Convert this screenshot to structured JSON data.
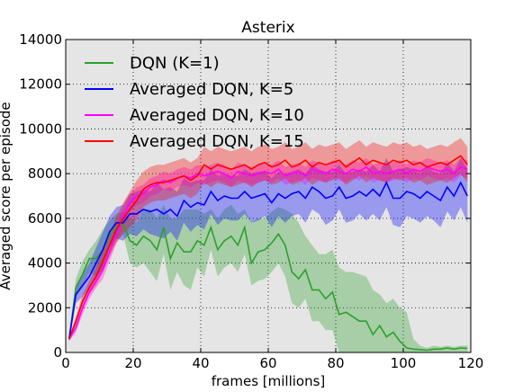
{
  "chart_data": {
    "type": "line",
    "title": "Asterix",
    "xlabel": "frames [millions]",
    "ylabel": "Averaged score per episode",
    "xlim": [
      0,
      120
    ],
    "ylim": [
      0,
      14000
    ],
    "xticks": [
      0,
      20,
      40,
      60,
      80,
      100,
      120
    ],
    "yticks": [
      0,
      2000,
      4000,
      6000,
      8000,
      10000,
      12000,
      14000
    ],
    "grid": true,
    "legend_position": "top-left",
    "background_color": "#e5e5e5",
    "series": [
      {
        "name": "DQN (K=1)",
        "color": "#2ca02c",
        "x": [
          1,
          3,
          5,
          7,
          9,
          11,
          13,
          15,
          17,
          19,
          21,
          23,
          25,
          27,
          29,
          31,
          33,
          35,
          37,
          39,
          41,
          43,
          45,
          47,
          49,
          51,
          53,
          55,
          57,
          59,
          61,
          63,
          65,
          67,
          69,
          71,
          73,
          75,
          77,
          79,
          81,
          83,
          85,
          87,
          89,
          91,
          93,
          95,
          97,
          99,
          101,
          103,
          105,
          107,
          109,
          111,
          113,
          115,
          117,
          119
        ],
        "y": [
          600,
          2900,
          3500,
          4200,
          4200,
          4600,
          5200,
          5600,
          5800,
          5000,
          4800,
          5200,
          5000,
          4600,
          5600,
          4200,
          4900,
          4500,
          4500,
          5000,
          4800,
          5600,
          4600,
          5000,
          5200,
          4800,
          5600,
          4000,
          4500,
          4600,
          4900,
          5300,
          4800,
          3600,
          3300,
          3700,
          2800,
          2800,
          2400,
          2700,
          1700,
          1800,
          1600,
          1400,
          1400,
          800,
          1200,
          700,
          900,
          500,
          200,
          150,
          130,
          100,
          150,
          150,
          200,
          150,
          200,
          180
        ],
        "upper": [
          700,
          3300,
          4100,
          4600,
          5000,
          5500,
          5900,
          6200,
          6300,
          6000,
          5800,
          6400,
          6400,
          6000,
          6600,
          6000,
          6000,
          6400,
          6400,
          6400,
          6200,
          6400,
          6000,
          6400,
          6600,
          6200,
          6400,
          5800,
          6000,
          6000,
          6300,
          6500,
          6400,
          6200,
          5800,
          5200,
          4800,
          4400,
          4400,
          4600,
          3800,
          3600,
          3600,
          3500,
          3400,
          2800,
          2600,
          2200,
          2400,
          2000,
          1800,
          600,
          300,
          200,
          300,
          250,
          300,
          250,
          300,
          300
        ],
        "lower": [
          500,
          2500,
          2900,
          3600,
          3400,
          3700,
          4500,
          5000,
          5300,
          4000,
          3800,
          4000,
          3600,
          3200,
          4400,
          2800,
          3600,
          3000,
          2800,
          3800,
          3400,
          4600,
          3400,
          3800,
          4000,
          3600,
          4400,
          3000,
          3200,
          3300,
          3600,
          4000,
          3400,
          2200,
          2000,
          2400,
          1400,
          1400,
          1000,
          1000,
          0,
          0,
          0,
          0,
          0,
          0,
          0,
          0,
          0,
          0,
          0,
          0,
          0,
          0,
          0,
          0,
          0,
          0,
          0,
          0
        ]
      },
      {
        "name": "Averaged DQN, K=5",
        "color": "#0000ff",
        "x": [
          1,
          3,
          5,
          7,
          9,
          11,
          13,
          15,
          17,
          19,
          21,
          23,
          25,
          27,
          29,
          31,
          33,
          35,
          37,
          39,
          41,
          43,
          45,
          47,
          49,
          51,
          53,
          55,
          57,
          59,
          61,
          63,
          65,
          67,
          69,
          71,
          73,
          75,
          77,
          79,
          81,
          83,
          85,
          87,
          89,
          91,
          93,
          95,
          97,
          99,
          101,
          103,
          105,
          107,
          109,
          111,
          113,
          115,
          117,
          119
        ],
        "y": [
          600,
          2600,
          3000,
          3400,
          4000,
          4600,
          5400,
          5800,
          5800,
          6200,
          6200,
          6400,
          6300,
          6400,
          6200,
          6400,
          6100,
          6800,
          6500,
          6700,
          6600,
          7200,
          6800,
          7000,
          6900,
          6900,
          7200,
          6900,
          7000,
          7100,
          6700,
          7100,
          6900,
          7100,
          7200,
          6900,
          7400,
          7200,
          6900,
          7000,
          7400,
          6900,
          7000,
          7200,
          7000,
          7300,
          7000,
          7600,
          6900,
          6900,
          7200,
          7100,
          6900,
          7200,
          7000,
          6800,
          7400,
          7000,
          7600,
          7000
        ],
        "upper": [
          700,
          3000,
          3500,
          4000,
          4700,
          5400,
          6100,
          6500,
          6600,
          7100,
          7200,
          7300,
          7200,
          7600,
          7300,
          7400,
          7200,
          7800,
          7600,
          7700,
          7700,
          8200,
          7900,
          8000,
          7900,
          7900,
          8200,
          8000,
          8100,
          8100,
          7800,
          8100,
          8000,
          8100,
          8200,
          8000,
          8400,
          8200,
          8100,
          8100,
          8400,
          8000,
          8100,
          8200,
          8100,
          8400,
          8100,
          8700,
          8100,
          8200,
          8300,
          8200,
          8000,
          8300,
          8100,
          8000,
          8500,
          8100,
          8700,
          8200
        ],
        "lower": [
          500,
          2200,
          2500,
          2900,
          3300,
          3800,
          4700,
          5100,
          5000,
          5300,
          5200,
          5500,
          5300,
          5200,
          5100,
          5400,
          5000,
          5800,
          5400,
          5700,
          5500,
          6200,
          5700,
          6000,
          5900,
          5900,
          6200,
          5800,
          5900,
          6100,
          5600,
          6100,
          5800,
          6100,
          6200,
          5800,
          6400,
          6200,
          5700,
          5900,
          6400,
          5800,
          5900,
          6200,
          5900,
          6200,
          5900,
          6500,
          5700,
          5600,
          6100,
          6000,
          5800,
          6100,
          5900,
          5600,
          6300,
          5900,
          6500,
          5800
        ]
      },
      {
        "name": "Averaged DQN, K=10",
        "color": "#ff00ff",
        "x": [
          1,
          3,
          5,
          7,
          9,
          11,
          13,
          15,
          17,
          19,
          21,
          23,
          25,
          27,
          29,
          31,
          33,
          35,
          37,
          39,
          41,
          43,
          45,
          47,
          49,
          51,
          53,
          55,
          57,
          59,
          61,
          63,
          65,
          67,
          69,
          71,
          73,
          75,
          77,
          79,
          81,
          83,
          85,
          87,
          89,
          91,
          93,
          95,
          97,
          99,
          101,
          103,
          105,
          107,
          109,
          111,
          113,
          115,
          117,
          119
        ],
        "y": [
          600,
          1100,
          2000,
          2700,
          3200,
          3700,
          4500,
          5300,
          6100,
          6700,
          7000,
          7100,
          7400,
          7500,
          7700,
          7600,
          7800,
          7900,
          7800,
          8000,
          7900,
          8000,
          8100,
          8000,
          7800,
          8100,
          8000,
          7900,
          8000,
          8100,
          8000,
          8200,
          7900,
          8000,
          8100,
          7900,
          8200,
          8100,
          8000,
          8200,
          8100,
          8000,
          8200,
          8100,
          8300,
          8000,
          8100,
          8000,
          8100,
          8200,
          8000,
          8200,
          8100,
          8300,
          8200,
          8100,
          8200,
          8000,
          8300,
          8200
        ],
        "upper": [
          700,
          1300,
          2300,
          3000,
          3500,
          4100,
          4900,
          5700,
          6500,
          7100,
          7400,
          7500,
          7800,
          7900,
          8100,
          8000,
          8200,
          8300,
          8200,
          8400,
          8300,
          8400,
          8500,
          8400,
          8200,
          8500,
          8400,
          8300,
          8400,
          8500,
          8400,
          8600,
          8300,
          8400,
          8500,
          8300,
          8600,
          8500,
          8400,
          8600,
          8500,
          8400,
          8600,
          8500,
          8700,
          8400,
          8500,
          8400,
          8500,
          8600,
          8400,
          8600,
          8500,
          8700,
          8600,
          8500,
          8600,
          8400,
          8700,
          8600
        ],
        "lower": [
          500,
          900,
          1700,
          2400,
          2900,
          3300,
          4100,
          4900,
          5700,
          6300,
          6600,
          6700,
          7000,
          7100,
          7300,
          7200,
          7400,
          7500,
          7400,
          7600,
          7500,
          7600,
          7700,
          7600,
          7400,
          7700,
          7600,
          7500,
          7600,
          7700,
          7600,
          7800,
          7500,
          7600,
          7700,
          7500,
          7800,
          7700,
          7600,
          7800,
          7700,
          7600,
          7800,
          7700,
          7900,
          7600,
          7700,
          7600,
          7700,
          7800,
          7600,
          7800,
          7700,
          7900,
          7800,
          7700,
          7800,
          7600,
          7900,
          7800
        ]
      },
      {
        "name": "Averaged DQN, K=15",
        "color": "#ff0000",
        "x": [
          1,
          3,
          5,
          7,
          9,
          11,
          13,
          15,
          17,
          19,
          21,
          23,
          25,
          27,
          29,
          31,
          33,
          35,
          37,
          39,
          41,
          43,
          45,
          47,
          49,
          51,
          53,
          55,
          57,
          59,
          61,
          63,
          65,
          67,
          69,
          71,
          73,
          75,
          77,
          79,
          81,
          83,
          85,
          87,
          89,
          91,
          93,
          95,
          97,
          99,
          101,
          103,
          105,
          107,
          109,
          111,
          113,
          115,
          117,
          119
        ],
        "y": [
          600,
          1400,
          2300,
          2900,
          3400,
          4100,
          4800,
          5500,
          6000,
          6400,
          6800,
          7300,
          7500,
          7600,
          7600,
          7700,
          7800,
          7900,
          7700,
          7900,
          8400,
          8200,
          8400,
          8300,
          8200,
          8300,
          8400,
          8200,
          8400,
          8500,
          8300,
          8400,
          8600,
          8300,
          8400,
          8600,
          8300,
          8500,
          8400,
          8500,
          8600,
          8300,
          8500,
          8700,
          8400,
          8600,
          8500,
          8400,
          8600,
          8500,
          8600,
          8400,
          8500,
          8300,
          8400,
          8500,
          8400,
          8600,
          8800,
          8400
        ],
        "upper": [
          700,
          1600,
          2600,
          3200,
          3800,
          4600,
          5300,
          6100,
          6700,
          7200,
          7700,
          8100,
          8300,
          8400,
          8400,
          8500,
          8600,
          8700,
          8500,
          8700,
          9200,
          9000,
          9200,
          9100,
          9000,
          9100,
          9200,
          9000,
          9200,
          9300,
          9100,
          9200,
          9400,
          9100,
          9200,
          9400,
          9100,
          9300,
          9200,
          9300,
          9400,
          9100,
          9300,
          9500,
          9200,
          9400,
          9300,
          9200,
          9400,
          9300,
          9400,
          9200,
          9300,
          9100,
          9200,
          9300,
          9200,
          9400,
          9600,
          9200
        ],
        "lower": [
          500,
          1200,
          2000,
          2600,
          3000,
          3600,
          4300,
          4900,
          5300,
          5600,
          5900,
          6500,
          6700,
          6800,
          6800,
          6900,
          7000,
          7100,
          6900,
          7100,
          7600,
          7400,
          7600,
          7500,
          7400,
          7500,
          7600,
          7400,
          7600,
          7700,
          7500,
          7600,
          7800,
          7500,
          7600,
          7800,
          7500,
          7700,
          7600,
          7700,
          7800,
          7500,
          7700,
          7900,
          7600,
          7800,
          7700,
          7600,
          7800,
          7700,
          7800,
          7600,
          7700,
          7500,
          7600,
          7700,
          7600,
          7800,
          8000,
          7600
        ]
      }
    ]
  }
}
